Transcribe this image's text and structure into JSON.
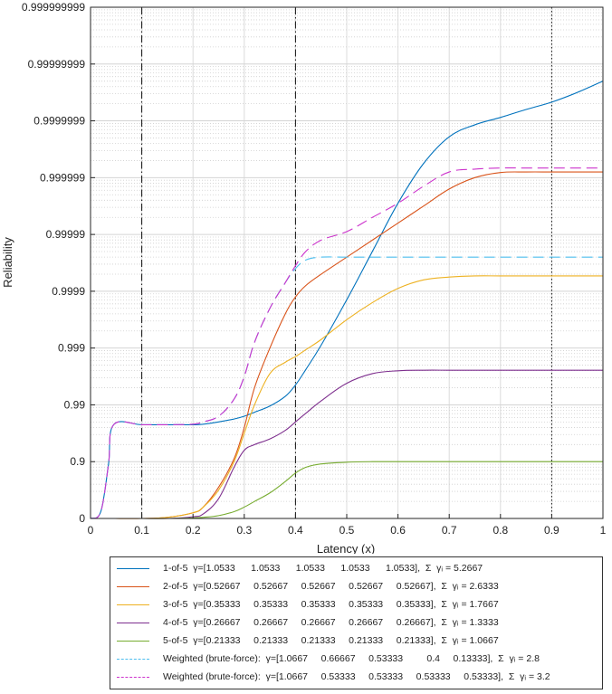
{
  "chart_data": {
    "type": "line",
    "xlabel": "Latency (x)",
    "ylabel": "Reliability",
    "xlim": [
      0,
      1
    ],
    "x_ticks": [
      "0",
      "0.1",
      "0.2",
      "0.3",
      "0.4",
      "0.5",
      "0.6",
      "0.7",
      "0.8",
      "0.9",
      "1"
    ],
    "y_scale": "nines (-log10(1-y))",
    "y_ticks": [
      "0",
      "0.9",
      "0.99",
      "0.999",
      "0.9999",
      "0.99999",
      "0.999999",
      "0.9999999",
      "0.99999999",
      "0.999999999"
    ],
    "grid": true,
    "legend_position": "below",
    "vertical_lines": [
      {
        "x": 0.1,
        "style": "dash-dot"
      },
      {
        "x": 0.4,
        "style": "dash-dot"
      },
      {
        "x": 0.9,
        "style": "dotted"
      }
    ],
    "x_points": [
      0,
      0.02,
      0.035,
      0.045,
      0.1,
      0.15,
      0.2,
      0.22,
      0.25,
      0.28,
      0.3,
      0.32,
      0.35,
      0.38,
      0.4,
      0.42,
      0.45,
      0.5,
      0.55,
      0.6,
      0.65,
      0.7,
      0.75,
      0.8,
      0.85,
      0.9,
      0.95,
      1.0
    ],
    "series": [
      {
        "name": "1-of-5",
        "color": "#0072BD",
        "dash": "solid",
        "nines": [
          0,
          0.12,
          0.95,
          1.65,
          1.65,
          1.65,
          1.65,
          1.66,
          1.7,
          1.75,
          1.8,
          1.87,
          1.98,
          2.15,
          2.35,
          2.62,
          3.05,
          3.85,
          4.7,
          5.55,
          6.25,
          6.72,
          6.93,
          7.06,
          7.2,
          7.33,
          7.5,
          7.7
        ]
      },
      {
        "name": "2-of-5",
        "color": "#D95319",
        "dash": "solid",
        "nines": [
          0,
          0,
          0,
          0,
          0,
          0.02,
          0.1,
          0.2,
          0.55,
          1.05,
          1.6,
          2.3,
          3.0,
          3.6,
          3.9,
          4.1,
          4.3,
          4.6,
          4.9,
          5.2,
          5.5,
          5.8,
          6.0,
          6.09,
          6.1,
          6.1,
          6.1,
          6.1
        ]
      },
      {
        "name": "3-of-5",
        "color": "#EDB120",
        "dash": "solid",
        "nines": [
          0,
          0,
          0,
          0,
          0,
          0.02,
          0.1,
          0.2,
          0.5,
          1.0,
          1.5,
          2.0,
          2.55,
          2.75,
          2.85,
          2.97,
          3.15,
          3.5,
          3.8,
          4.05,
          4.2,
          4.25,
          4.27,
          4.27,
          4.27,
          4.27,
          4.27,
          4.27
        ]
      },
      {
        "name": "4-of-5",
        "color": "#7E2F8E",
        "dash": "solid",
        "nines": [
          0,
          0,
          0,
          0,
          0,
          0,
          0.03,
          0.08,
          0.35,
          0.9,
          1.2,
          1.3,
          1.4,
          1.55,
          1.7,
          1.85,
          2.07,
          2.38,
          2.55,
          2.6,
          2.61,
          2.61,
          2.61,
          2.61,
          2.61,
          2.61,
          2.61,
          2.61
        ]
      },
      {
        "name": "5-of-5",
        "color": "#77AC30",
        "dash": "solid",
        "nines": [
          0,
          0,
          0,
          0,
          0,
          0,
          0.01,
          0.02,
          0.05,
          0.12,
          0.2,
          0.3,
          0.45,
          0.65,
          0.8,
          0.9,
          0.96,
          0.99,
          1.0,
          1.0,
          1.0,
          1.0,
          1.0,
          1.0,
          1.0,
          1.0,
          1.0,
          1.0
        ]
      },
      {
        "name": "Weighted (brute-force) 1",
        "color": "#4DBEEE",
        "dash": "dashed",
        "nines": [
          0,
          0.12,
          0.95,
          1.65,
          1.65,
          1.65,
          1.66,
          1.7,
          1.8,
          2.1,
          2.5,
          3.1,
          3.7,
          4.15,
          4.4,
          4.55,
          4.6,
          4.6,
          4.6,
          4.6,
          4.6,
          4.6,
          4.6,
          4.6,
          4.6,
          4.6,
          4.6,
          4.6
        ]
      },
      {
        "name": "Weighted (brute-force) 2",
        "color": "#CC33CC",
        "dash": "dashed",
        "nines": [
          0,
          0.12,
          0.95,
          1.65,
          1.65,
          1.65,
          1.66,
          1.7,
          1.8,
          2.1,
          2.5,
          3.1,
          3.7,
          4.15,
          4.45,
          4.7,
          4.9,
          5.05,
          5.3,
          5.55,
          5.85,
          6.1,
          6.15,
          6.17,
          6.17,
          6.17,
          6.17,
          6.17
        ]
      }
    ]
  },
  "legend": {
    "items": [
      {
        "color": "#0072BD",
        "dash": "solid",
        "text": "1-of-5  γ=[1.0533      1.0533      1.0533      1.0533      1.0533],  Σ  γᵢ = 5.2667"
      },
      {
        "color": "#D95319",
        "dash": "solid",
        "text": "2-of-5  γ=[0.52667     0.52667     0.52667     0.52667     0.52667],  Σ  γᵢ = 2.6333"
      },
      {
        "color": "#EDB120",
        "dash": "solid",
        "text": "3-of-5  γ=[0.35333     0.35333     0.35333     0.35333     0.35333],  Σ  γᵢ = 1.7667"
      },
      {
        "color": "#7E2F8E",
        "dash": "solid",
        "text": "4-of-5  γ=[0.26667     0.26667     0.26667     0.26667     0.26667],  Σ  γᵢ = 1.3333"
      },
      {
        "color": "#77AC30",
        "dash": "solid",
        "text": "5-of-5  γ=[0.21333     0.21333     0.21333     0.21333     0.21333],  Σ  γᵢ = 1.0667"
      },
      {
        "color": "#4DBEEE",
        "dash": "dashed",
        "text": "Weighted (brute-force):  γ=[1.0667     0.66667     0.53333         0.4     0.13333],  Σ  γᵢ = 2.8"
      },
      {
        "color": "#CC33CC",
        "dash": "dashed",
        "text": "Weighted (brute-force):  γ=[1.0667     0.53333     0.53333     0.53333     0.53333],  Σ  γᵢ = 3.2"
      }
    ]
  }
}
